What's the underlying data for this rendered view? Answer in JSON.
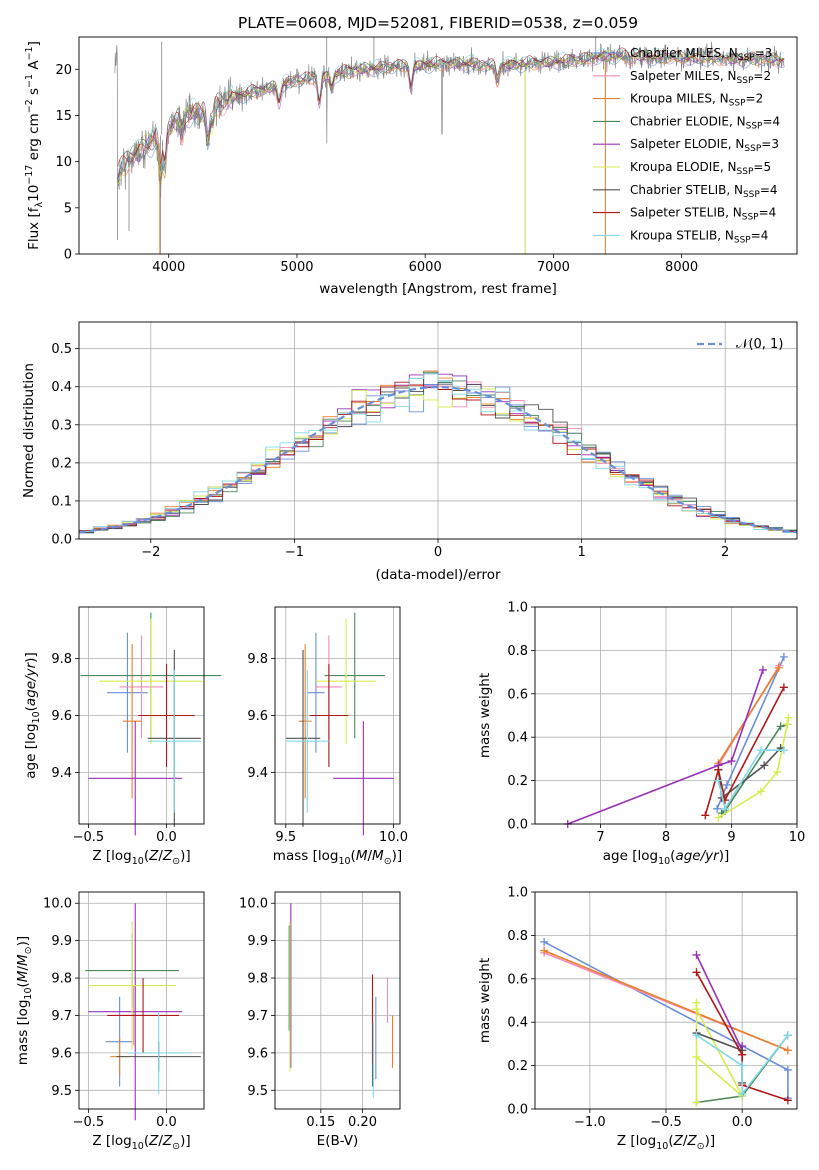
{
  "colors": {
    "chabrier_miles": "#6a8fd8",
    "salpeter_miles": "#f28cb8",
    "kroupa_miles": "#e8802a",
    "chabrier_elodie": "#4a8a5a",
    "salpeter_elodie": "#9b30b8",
    "kroupa_elodie": "#d8ec50",
    "chabrier_stelib": "#505050",
    "salpeter_stelib": "#b01818",
    "kroupa_stelib": "#80d8e8",
    "spectrum_gray": "#858585",
    "grid": "#b0b0b0",
    "gaussian": "#6a8fd8"
  },
  "chart_data": [
    {
      "id": "spectrum",
      "type": "line",
      "title": "PLATE=0608, MJD=52081, FIBERID=0538, z=0.059",
      "xlabel": "wavelength [Angstrom, rest frame]",
      "ylabel": "Flux [fλ10⁻¹⁷ erg cm⁻² s⁻¹ A⁻¹]",
      "xlim": [
        3300,
        8900
      ],
      "ylim": [
        0,
        23.5
      ],
      "xticks": [
        4000,
        5000,
        6000,
        7000,
        8000
      ],
      "yticks": [
        0,
        5,
        10,
        15,
        20
      ],
      "grid": false,
      "legend_position": "right",
      "legend": [
        {
          "label": "Chabrier MILES, N",
          "sub": "SSP",
          "suffix": "=3",
          "color": "chabrier_miles"
        },
        {
          "label": "Salpeter MILES, N",
          "sub": "SSP",
          "suffix": "=2",
          "color": "salpeter_miles"
        },
        {
          "label": "Kroupa MILES, N",
          "sub": "SSP",
          "suffix": "=2",
          "color": "kroupa_miles"
        },
        {
          "label": "Chabrier ELODIE, N",
          "sub": "SSP",
          "suffix": "=4",
          "color": "chabrier_elodie"
        },
        {
          "label": "Salpeter ELODIE, N",
          "sub": "SSP",
          "suffix": "=3",
          "color": "salpeter_elodie"
        },
        {
          "label": "Kroupa ELODIE, N",
          "sub": "SSP",
          "suffix": "=5",
          "color": "kroupa_elodie"
        },
        {
          "label": "Chabrier STELIB, N",
          "sub": "SSP",
          "suffix": "=4",
          "color": "chabrier_stelib"
        },
        {
          "label": "Salpeter STELIB, N",
          "sub": "SSP",
          "suffix": "=4",
          "color": "salpeter_stelib"
        },
        {
          "label": "Kroupa STELIB, N",
          "sub": "SSP",
          "suffix": "=4",
          "color": "kroupa_stelib"
        }
      ],
      "continuum": [
        [
          3600,
          8.5
        ],
        [
          3700,
          10.5
        ],
        [
          3850,
          12
        ],
        [
          3950,
          13
        ],
        [
          4100,
          15
        ],
        [
          4300,
          15.5
        ],
        [
          4500,
          17
        ],
        [
          4800,
          18
        ],
        [
          5000,
          18.8
        ],
        [
          5200,
          19.2
        ],
        [
          5500,
          20
        ],
        [
          5800,
          20.3
        ],
        [
          6000,
          20.5
        ],
        [
          6300,
          20.6
        ],
        [
          6500,
          20.4
        ],
        [
          6800,
          20.6
        ],
        [
          7000,
          20.8
        ],
        [
          7200,
          21
        ],
        [
          7400,
          21.4
        ],
        [
          7600,
          21.5
        ],
        [
          7800,
          21.3
        ],
        [
          8000,
          21.2
        ],
        [
          8200,
          21.2
        ],
        [
          8400,
          21.1
        ],
        [
          8600,
          21.1
        ],
        [
          8800,
          21
        ]
      ]
    },
    {
      "id": "residuals",
      "type": "step",
      "xlabel": "(data-model)/error",
      "ylabel": "Normed distribution",
      "xlim": [
        -2.5,
        2.5
      ],
      "ylim": [
        0,
        0.57
      ],
      "xticks": [
        -2,
        -1,
        0,
        1,
        2
      ],
      "yticks": [
        0.0,
        0.1,
        0.2,
        0.3,
        0.4,
        0.5
      ],
      "grid": true,
      "legend_position": "top-right",
      "legend": "𝒩(0, 1)",
      "bin_width": 0.1
    },
    {
      "id": "age_vs_Z",
      "type": "errorbar",
      "xlabel": "Z [log10(Z/Z⊙)]",
      "ylabel": "age  [log10(age/yr)]",
      "xlim": [
        -0.56,
        0.24
      ],
      "ylim": [
        9.22,
        9.98
      ],
      "xticks": [
        -0.5,
        0.0
      ],
      "yticks": [
        9.4,
        9.6,
        9.8
      ],
      "grid": true,
      "points": [
        {
          "series": "chabrier_miles",
          "x": -0.25,
          "y": 9.68,
          "xerr": 0.13,
          "yerr": 0.21
        },
        {
          "series": "salpeter_miles",
          "x": -0.16,
          "y": 9.7,
          "xerr": 0.14,
          "yerr": 0.18
        },
        {
          "series": "kroupa_miles",
          "x": -0.22,
          "y": 9.58,
          "xerr": 0.06,
          "yerr": 0.27
        },
        {
          "series": "chabrier_elodie",
          "x": -0.1,
          "y": 9.74,
          "xerr": 0.45,
          "yerr": 0.22
        },
        {
          "series": "salpeter_elodie",
          "x": -0.2,
          "y": 9.38,
          "xerr": 0.3,
          "yerr": 0.2
        },
        {
          "series": "kroupa_elodie",
          "x": -0.1,
          "y": 9.72,
          "xerr": 0.33,
          "yerr": 0.22
        },
        {
          "series": "chabrier_stelib",
          "x": 0.05,
          "y": 9.52,
          "xerr": 0.17,
          "yerr": 0.31
        },
        {
          "series": "salpeter_stelib",
          "x": 0.0,
          "y": 9.6,
          "xerr": 0.18,
          "yerr": 0.18
        },
        {
          "series": "kroupa_stelib",
          "x": 0.05,
          "y": 9.51,
          "xerr": 0.17,
          "yerr": 0.25
        }
      ]
    },
    {
      "id": "age_vs_mass",
      "type": "errorbar",
      "xlabel": "mass [log10(M/M⊙)]",
      "xlim": [
        9.45,
        10.03
      ],
      "ylim": [
        9.22,
        9.98
      ],
      "xticks": [
        9.5,
        10.0
      ],
      "yticks": [
        9.4,
        9.6,
        9.8
      ],
      "grid": true,
      "points": [
        {
          "series": "chabrier_miles",
          "x": 9.64,
          "y": 9.68,
          "xerr": 0.04,
          "yerr": 0.21
        },
        {
          "series": "salpeter_miles",
          "x": 9.7,
          "y": 9.7,
          "xerr": 0.06,
          "yerr": 0.18
        },
        {
          "series": "kroupa_miles",
          "x": 9.59,
          "y": 9.58,
          "xerr": 0.03,
          "yerr": 0.27
        },
        {
          "series": "chabrier_elodie",
          "x": 9.82,
          "y": 9.74,
          "xerr": 0.14,
          "yerr": 0.22
        },
        {
          "series": "salpeter_elodie",
          "x": 9.86,
          "y": 9.38,
          "xerr": 0.14,
          "yerr": 0.2
        },
        {
          "series": "kroupa_elodie",
          "x": 9.78,
          "y": 9.72,
          "xerr": 0.14,
          "yerr": 0.22
        },
        {
          "series": "chabrier_stelib",
          "x": 9.58,
          "y": 9.52,
          "xerr": 0.08,
          "yerr": 0.31
        },
        {
          "series": "salpeter_stelib",
          "x": 9.7,
          "y": 9.6,
          "xerr": 0.09,
          "yerr": 0.18
        },
        {
          "series": "kroupa_stelib",
          "x": 9.6,
          "y": 9.51,
          "xerr": 0.1,
          "yerr": 0.25
        }
      ]
    },
    {
      "id": "weight_vs_age",
      "type": "line",
      "xlabel": "age  [log10(age/yr)]",
      "ylabel": "mass weight",
      "xlim": [
        6.0,
        10.0
      ],
      "ylim": [
        0.0,
        1.0
      ],
      "xticks": [
        7,
        8,
        9,
        10
      ],
      "yticks": [
        0.0,
        0.2,
        0.4,
        0.6,
        0.8,
        1.0
      ],
      "grid": true,
      "series": [
        {
          "name": "chabrier_miles",
          "points": [
            [
              8.78,
              0.07
            ],
            [
              8.93,
              0.18
            ],
            [
              9.8,
              0.77
            ]
          ]
        },
        {
          "name": "salpeter_miles",
          "points": [
            [
              8.8,
              0.27
            ],
            [
              9.73,
              0.73
            ]
          ]
        },
        {
          "name": "kroupa_miles",
          "points": [
            [
              8.8,
              0.28
            ],
            [
              9.72,
              0.72
            ]
          ]
        },
        {
          "name": "chabrier_elodie",
          "points": [
            [
              8.85,
              0.05
            ],
            [
              8.9,
              0.06
            ],
            [
              9.75,
              0.45
            ],
            [
              9.85,
              0.46
            ]
          ]
        },
        {
          "name": "salpeter_elodie",
          "points": [
            [
              6.5,
              0.0
            ],
            [
              8.8,
              0.27
            ],
            [
              9.0,
              0.29
            ],
            [
              9.48,
              0.71
            ]
          ]
        },
        {
          "name": "kroupa_elodie",
          "points": [
            [
              8.8,
              0.03
            ],
            [
              9.45,
              0.15
            ],
            [
              9.7,
              0.24
            ],
            [
              9.85,
              0.46
            ],
            [
              9.87,
              0.49
            ]
          ]
        },
        {
          "name": "chabrier_stelib",
          "points": [
            [
              8.8,
              0.25
            ],
            [
              8.85,
              0.12
            ],
            [
              9.5,
              0.27
            ],
            [
              9.75,
              0.35
            ]
          ]
        },
        {
          "name": "salpeter_stelib",
          "points": [
            [
              8.6,
              0.04
            ],
            [
              8.8,
              0.25
            ],
            [
              8.9,
              0.11
            ],
            [
              9.8,
              0.63
            ]
          ]
        },
        {
          "name": "kroupa_stelib",
          "points": [
            [
              8.8,
              0.2
            ],
            [
              8.9,
              0.07
            ],
            [
              9.45,
              0.34
            ],
            [
              9.8,
              0.34
            ]
          ]
        }
      ]
    },
    {
      "id": "mass_vs_Z",
      "type": "errorbar",
      "xlabel": "Z [log10(Z/Z⊙)]",
      "ylabel": "mass [log10(M/M⊙)]",
      "xlim": [
        -0.56,
        0.24
      ],
      "ylim": [
        9.45,
        10.03
      ],
      "xticks": [
        -0.5,
        0.0
      ],
      "yticks": [
        9.5,
        9.6,
        9.7,
        9.8,
        9.9,
        10.0
      ],
      "grid": true,
      "points": [
        {
          "series": "chabrier_miles",
          "x": -0.3,
          "y": 9.63,
          "xerr": 0.09,
          "yerr": 0.12
        },
        {
          "series": "salpeter_miles",
          "x": -0.21,
          "y": 9.7,
          "xerr": 0.11,
          "yerr": 0.08
        },
        {
          "series": "kroupa_miles",
          "x": -0.3,
          "y": 9.59,
          "xerr": 0.06,
          "yerr": 0.05
        },
        {
          "series": "chabrier_elodie",
          "x": -0.22,
          "y": 9.82,
          "xerr": 0.3,
          "yerr": 0.1
        },
        {
          "series": "salpeter_elodie",
          "x": -0.2,
          "y": 9.71,
          "xerr": 0.3,
          "yerr": 0.29
        },
        {
          "series": "kroupa_elodie",
          "x": -0.22,
          "y": 9.78,
          "xerr": 0.28,
          "yerr": 0.17
        },
        {
          "series": "chabrier_stelib",
          "x": -0.05,
          "y": 9.59,
          "xerr": 0.27,
          "yerr": 0.04
        },
        {
          "series": "salpeter_stelib",
          "x": -0.15,
          "y": 9.7,
          "xerr": 0.23,
          "yerr": 0.1
        },
        {
          "series": "kroupa_stelib",
          "x": -0.05,
          "y": 9.6,
          "xerr": 0.2,
          "yerr": 0.11
        }
      ]
    },
    {
      "id": "mass_vs_ebv",
      "type": "errorbar",
      "xlabel": "E(B-V)",
      "xlim": [
        0.095,
        0.245
      ],
      "ylim": [
        9.45,
        10.03
      ],
      "xticks": [
        0.15,
        0.2
      ],
      "yticks": [
        9.5,
        9.6,
        9.7,
        9.8,
        9.9,
        10.0
      ],
      "grid": true,
      "points": [
        {
          "series": "chabrier_miles",
          "x": 0.216,
          "y": 9.64,
          "yerr": 0.11
        },
        {
          "series": "salpeter_miles",
          "x": 0.23,
          "y": 9.74,
          "yerr": 0.06
        },
        {
          "series": "kroupa_miles",
          "x": 0.236,
          "y": 9.63,
          "yerr": 0.07
        },
        {
          "series": "chabrier_elodie",
          "x": 0.112,
          "y": 9.8,
          "yerr": 0.14
        },
        {
          "series": "salpeter_elodie",
          "x": 0.114,
          "y": 9.78,
          "yerr": 0.22
        },
        {
          "series": "kroupa_elodie",
          "x": 0.113,
          "y": 9.75,
          "yerr": 0.2
        },
        {
          "series": "chabrier_stelib",
          "x": 0.212,
          "y": 9.63,
          "yerr": 0.12
        },
        {
          "series": "salpeter_stelib",
          "x": 0.212,
          "y": 9.69,
          "yerr": 0.12
        },
        {
          "series": "kroupa_stelib",
          "x": 0.213,
          "y": 9.58,
          "yerr": 0.1
        }
      ]
    },
    {
      "id": "weight_vs_Z",
      "type": "line",
      "xlabel": "Z [log10(Z/Z⊙)]",
      "ylabel": "mass weight",
      "xlim": [
        -1.36,
        0.36
      ],
      "ylim": [
        0.0,
        1.0
      ],
      "xticks": [
        -1.0,
        -0.5,
        0.0
      ],
      "yticks": [
        0.0,
        0.2,
        0.4,
        0.6,
        0.8,
        1.0
      ],
      "grid": true,
      "series": [
        {
          "name": "chabrier_miles",
          "points": [
            [
              -1.3,
              0.77
            ],
            [
              0.3,
              0.18
            ],
            [
              0.3,
              0.05
            ]
          ]
        },
        {
          "name": "salpeter_miles",
          "points": [
            [
              -1.3,
              0.72
            ],
            [
              0.3,
              0.27
            ]
          ]
        },
        {
          "name": "kroupa_miles",
          "points": [
            [
              -1.3,
              0.73
            ],
            [
              0.3,
              0.27
            ]
          ]
        },
        {
          "name": "chabrier_elodie",
          "points": [
            [
              -0.3,
              0.03
            ],
            [
              0.0,
              0.06
            ],
            [
              0.3,
              0.34
            ]
          ]
        },
        {
          "name": "salpeter_elodie",
          "points": [
            [
              -0.3,
              0.71
            ],
            [
              0.0,
              0.27
            ],
            [
              0.0,
              0.29
            ]
          ]
        },
        {
          "name": "kroupa_elodie",
          "points": [
            [
              -0.3,
              0.49
            ],
            [
              -0.3,
              0.03
            ],
            [
              -0.3,
              0.24
            ],
            [
              0.0,
              0.06
            ],
            [
              -0.3,
              0.46
            ]
          ]
        },
        {
          "name": "chabrier_stelib",
          "points": [
            [
              -0.3,
              0.35
            ],
            [
              0.0,
              0.27
            ],
            [
              0.0,
              0.12
            ],
            [
              0.0,
              0.25
            ]
          ]
        },
        {
          "name": "salpeter_stelib",
          "points": [
            [
              -0.3,
              0.63
            ],
            [
              0.0,
              0.25
            ],
            [
              0.0,
              0.11
            ],
            [
              0.3,
              0.04
            ]
          ]
        },
        {
          "name": "kroupa_stelib",
          "points": [
            [
              -0.3,
              0.34
            ],
            [
              0.0,
              0.2
            ],
            [
              0.0,
              0.07
            ],
            [
              0.3,
              0.34
            ]
          ]
        }
      ]
    }
  ]
}
